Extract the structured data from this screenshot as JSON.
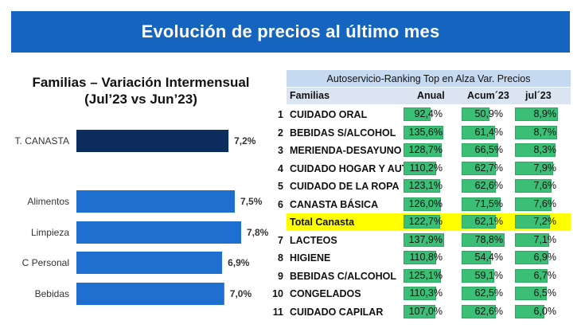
{
  "banner_title": "Evolución de precios al último mes",
  "chart_title_line1": "Familias – Variación Intermensual",
  "chart_title_line2": "(Jul’23 vs Jun’23)",
  "colors": {
    "banner": "#1565c0",
    "bar_total": "#0d2d5e",
    "bar": "#1e6fd0",
    "table_bar": "#3bbf77",
    "highlight": "#ffff00",
    "table_header": "#c5d9f1"
  },
  "chart_data": {
    "type": "bar",
    "orientation": "horizontal",
    "categories": [
      "T. CANASTA",
      "Alimentos",
      "Limpieza",
      "C Personal",
      "Bebidas"
    ],
    "values": [
      7.2,
      7.5,
      7.8,
      6.9,
      7.0
    ],
    "value_labels": [
      "7,2%",
      "7,5%",
      "7,8%",
      "6,9%",
      "7,0%"
    ],
    "title": "Familias – Variación Intermensual (Jul’23 vs Jun’23)",
    "xlabel": "",
    "ylabel": ""
  },
  "table": {
    "header": "Autoservicio-Ranking Top en Alza Var. Precios",
    "columns": [
      "Familias",
      "Anual",
      "Acum´23",
      "jul´23"
    ],
    "rows": [
      {
        "rank": "1",
        "name": "CUIDADO ORAL",
        "anual": "92,4%",
        "anual_v": 92.4,
        "acum": "50,9%",
        "acum_v": 50.9,
        "jul": "8,9%",
        "jul_v": 8.9
      },
      {
        "rank": "2",
        "name": "BEBIDAS S/ALCOHOL",
        "anual": "135,6%",
        "anual_v": 135.6,
        "acum": "61,4%",
        "acum_v": 61.4,
        "jul": "8,7%",
        "jul_v": 8.7
      },
      {
        "rank": "3",
        "name": "MERIENDA-DESAYUNO",
        "anual": "128,7%",
        "anual_v": 128.7,
        "acum": "66,5%",
        "acum_v": 66.5,
        "jul": "8,3%",
        "jul_v": 8.3
      },
      {
        "rank": "4",
        "name": "CUIDADO HOGAR Y AUTO",
        "anual": "110,2%",
        "anual_v": 110.2,
        "acum": "62,7%",
        "acum_v": 62.7,
        "jul": "7,9%",
        "jul_v": 7.9
      },
      {
        "rank": "5",
        "name": "CUIDADO DE LA ROPA",
        "anual": "123,1%",
        "anual_v": 123.1,
        "acum": "62,6%",
        "acum_v": 62.6,
        "jul": "7,6%",
        "jul_v": 7.6
      },
      {
        "rank": "6",
        "name": "CANASTA BÁSICA",
        "anual": "126,0%",
        "anual_v": 126.0,
        "acum": "71,5%",
        "acum_v": 71.5,
        "jul": "7,6%",
        "jul_v": 7.6
      },
      {
        "rank": "",
        "name": "Total Canasta",
        "anual": "122,7%",
        "anual_v": 122.7,
        "acum": "62,1%",
        "acum_v": 62.1,
        "jul": "7,2%",
        "jul_v": 7.2,
        "highlight": true
      },
      {
        "rank": "7",
        "name": "LACTEOS",
        "anual": "137,9%",
        "anual_v": 137.9,
        "acum": "78,8%",
        "acum_v": 78.8,
        "jul": "7,1%",
        "jul_v": 7.1
      },
      {
        "rank": "8",
        "name": "HIGIENE",
        "anual": "110,8%",
        "anual_v": 110.8,
        "acum": "54,4%",
        "acum_v": 54.4,
        "jul": "6,9%",
        "jul_v": 6.9
      },
      {
        "rank": "9",
        "name": "BEBIDAS C/ALCOHOL",
        "anual": "125,1%",
        "anual_v": 125.1,
        "acum": "59,1%",
        "acum_v": 59.1,
        "jul": "6,7%",
        "jul_v": 6.7
      },
      {
        "rank": "10",
        "name": "CONGELADOS",
        "anual": "110,3%",
        "anual_v": 110.3,
        "acum": "62,5%",
        "acum_v": 62.5,
        "jul": "6,5%",
        "jul_v": 6.5
      },
      {
        "rank": "11",
        "name": "CUIDADO CAPILAR",
        "anual": "107,0%",
        "anual_v": 107.0,
        "acum": "62,6%",
        "acum_v": 62.6,
        "jul": "6,0%",
        "jul_v": 6.0
      }
    ]
  }
}
